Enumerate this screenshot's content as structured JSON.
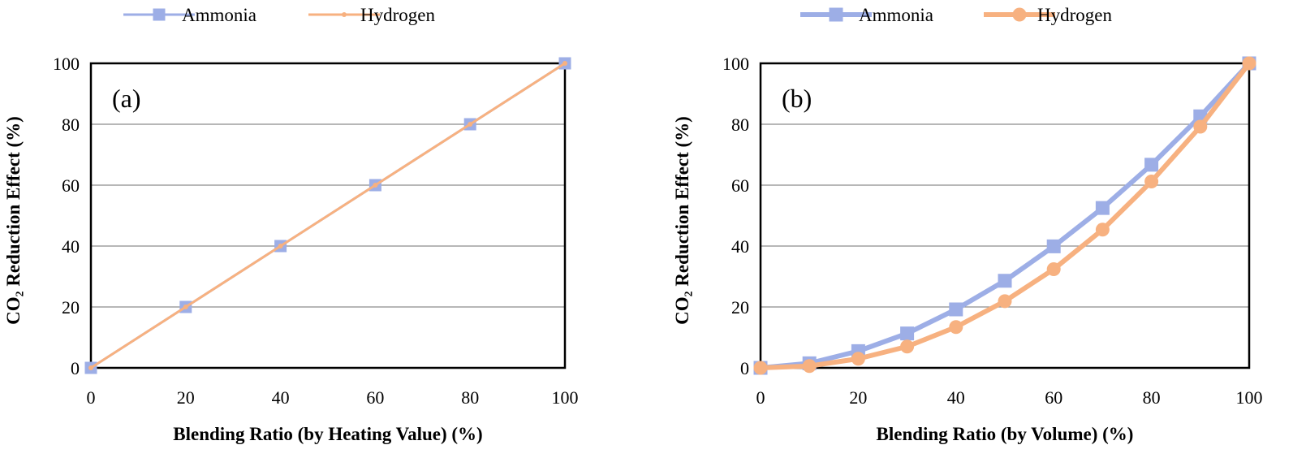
{
  "colors": {
    "ammonia": "#9daee6",
    "hydrogen": "#f7b180",
    "grid": "#8c8c8c",
    "axis": "#000000"
  },
  "chart_data": [
    {
      "type": "line",
      "panel_label": "(a)",
      "xlabel": "Blending Ratio (by Heating Value) (%)",
      "ylabel": "CO₂ Reduction Effect (%)",
      "xlim": [
        0,
        100
      ],
      "ylim": [
        0,
        100
      ],
      "x_ticks": [
        "0",
        "20",
        "40",
        "60",
        "80",
        "100"
      ],
      "y_ticks": [
        "0",
        "20",
        "40",
        "60",
        "80",
        "100"
      ],
      "grid": true,
      "legend": {
        "position": "top"
      },
      "series": [
        {
          "name": "Ammonia",
          "marker": "square",
          "x": [
            0,
            20,
            40,
            60,
            80,
            100
          ],
          "values": [
            0,
            20,
            40,
            60,
            80,
            100
          ]
        },
        {
          "name": "Hydrogen",
          "marker": "small-circle",
          "x": [
            0,
            20,
            40,
            60,
            80,
            100
          ],
          "values": [
            0,
            20,
            40,
            60,
            80,
            100
          ]
        }
      ]
    },
    {
      "type": "line",
      "panel_label": "(b)",
      "xlabel": "Blending Ratio (by Volume) (%)",
      "ylabel": "CO₂ Reduction Effect (%)",
      "xlim": [
        0,
        100
      ],
      "ylim": [
        0,
        100
      ],
      "x_ticks": [
        "0",
        "20",
        "40",
        "60",
        "80",
        "100"
      ],
      "y_ticks": [
        "0",
        "20",
        "40",
        "60",
        "80",
        "100"
      ],
      "grid": true,
      "legend": {
        "position": "top"
      },
      "series": [
        {
          "name": "Ammonia",
          "marker": "square",
          "x": [
            0,
            10,
            20,
            30,
            40,
            50,
            60,
            70,
            80,
            90,
            100
          ],
          "values": [
            0,
            1.5,
            5.5,
            11.3,
            19.2,
            28.6,
            39.9,
            52.5,
            66.7,
            82.6,
            100
          ]
        },
        {
          "name": "Hydrogen",
          "marker": "circle",
          "x": [
            0,
            10,
            20,
            30,
            40,
            50,
            60,
            70,
            80,
            90,
            100
          ],
          "values": [
            0,
            0.6,
            3.0,
            7.0,
            13.4,
            21.9,
            32.4,
            45.4,
            61.2,
            79.2,
            100
          ]
        }
      ]
    }
  ]
}
